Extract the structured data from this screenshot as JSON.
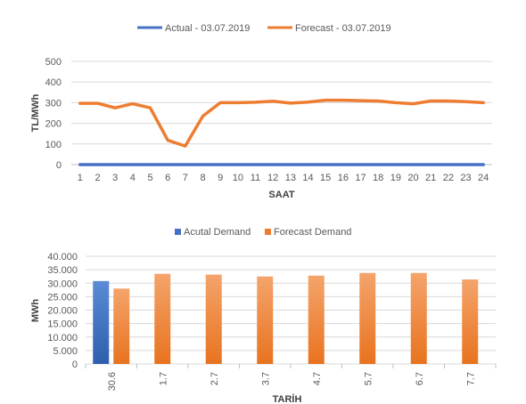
{
  "colors": {
    "actual": "#4472C4",
    "forecast": "#ED7D31",
    "grid": "#D9D9D9",
    "text": "#595959"
  },
  "chart_data": [
    {
      "type": "line",
      "ylabel": "TL/MWh",
      "xlabel": "SAAT",
      "ylim": [
        0,
        500
      ],
      "yticks": [
        "0",
        "100",
        "200",
        "300",
        "400",
        "500"
      ],
      "grid": true,
      "legend_position": "top",
      "x": [
        "1",
        "2",
        "3",
        "4",
        "5",
        "6",
        "7",
        "8",
        "9",
        "10",
        "11",
        "12",
        "13",
        "14",
        "15",
        "16",
        "17",
        "18",
        "19",
        "20",
        "21",
        "22",
        "23",
        "24"
      ],
      "series": [
        {
          "name": "Actual - 03.07.2019",
          "color": "#4472C4",
          "values": [
            0,
            0,
            0,
            0,
            0,
            0,
            0,
            0,
            0,
            0,
            0,
            0,
            0,
            0,
            0,
            0,
            0,
            0,
            0,
            0,
            0,
            0,
            0,
            0
          ]
        },
        {
          "name": "Forecast - 03.07.2019",
          "color": "#ED7D31",
          "values": [
            297,
            297,
            275,
            295,
            275,
            118,
            90,
            235,
            300,
            300,
            302,
            307,
            298,
            303,
            312,
            312,
            310,
            308,
            300,
            295,
            308,
            308,
            305,
            300
          ]
        }
      ]
    },
    {
      "type": "bar",
      "ylabel": "MWh",
      "xlabel": "TARİH",
      "ylim": [
        0,
        40000
      ],
      "yticks": [
        "0",
        "5.000",
        "10.000",
        "15.000",
        "20.000",
        "25.000",
        "30.000",
        "35.000",
        "40.000"
      ],
      "grid": true,
      "legend_position": "top",
      "categories": [
        "30.6",
        "1.7",
        "2.7",
        "3.7",
        "4.7",
        "5.7",
        "6.7",
        "7.7"
      ],
      "series": [
        {
          "name": "Acutal Demand",
          "color": "#4472C4",
          "values": [
            30800,
            null,
            null,
            null,
            null,
            null,
            null,
            null
          ]
        },
        {
          "name": "Forecast Demand",
          "color": "#ED7D31",
          "values": [
            28000,
            33500,
            33200,
            32500,
            32800,
            33800,
            33800,
            31400
          ]
        }
      ]
    }
  ]
}
